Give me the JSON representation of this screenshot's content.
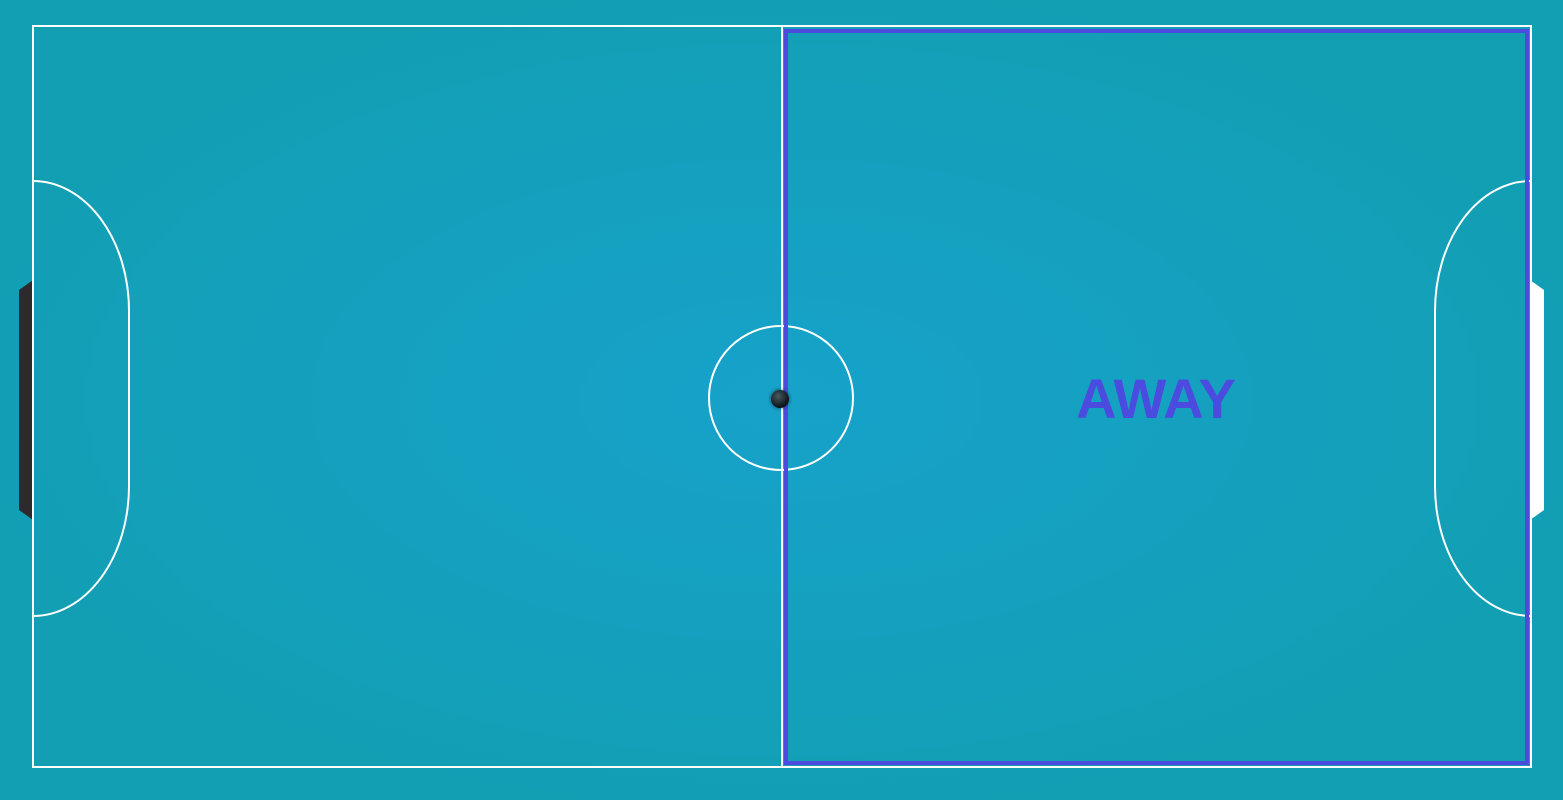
{
  "court": {
    "surface_color": "#129fb3",
    "center_glow_color": "#169fc8",
    "line_color": "#ffffff"
  },
  "zones": {
    "away": {
      "label": "AWAY",
      "color": "#4b4be0"
    }
  },
  "goals": {
    "left": {
      "color": "#2b2b2b"
    },
    "right": {
      "color": "#ffffff"
    }
  },
  "ball": {
    "color": "#0a1418",
    "icon": "ball-icon"
  }
}
